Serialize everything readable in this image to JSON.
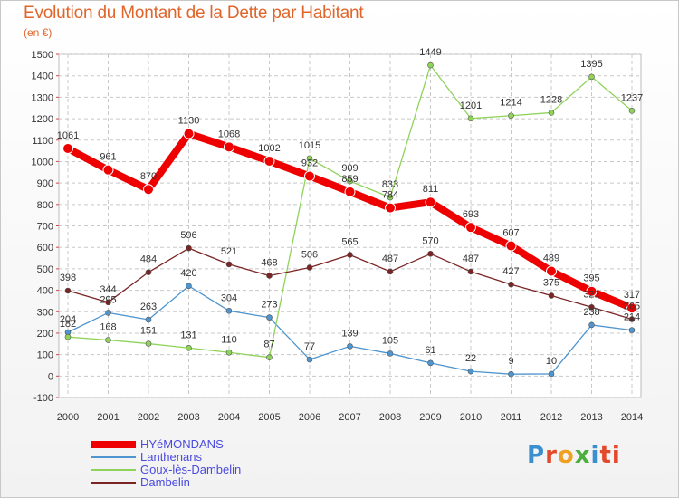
{
  "header": {
    "title": "Evolution du Montant de la Dette par Habitant",
    "unit": "(en €)"
  },
  "brand": {
    "letters": [
      "P",
      "r",
      "o",
      "x",
      "i",
      "ti"
    ]
  },
  "colors": {
    "title": "#e0652a",
    "label": "#333333",
    "grid": "#c8c8c8",
    "axis_ticks": "#d24a4a"
  },
  "chart_data": {
    "type": "line",
    "title": "Evolution du Montant de la Dette par Habitant",
    "ylabel": "(en €)",
    "xlabel": "",
    "x": [
      "2000",
      "2001",
      "2002",
      "2003",
      "2004",
      "2005",
      "2006",
      "2007",
      "2008",
      "2009",
      "2010",
      "2011",
      "2012",
      "2013",
      "2014"
    ],
    "ylim": [
      -100,
      1500
    ],
    "yticks": [
      -100,
      0,
      100,
      200,
      300,
      400,
      500,
      600,
      700,
      800,
      900,
      1000,
      1100,
      1200,
      1300,
      1400,
      1500
    ],
    "grid": true,
    "legend_position": "bottom-left",
    "series": [
      {
        "name": "HYéMONDANS",
        "color": "#ee0000",
        "emphasis": true,
        "values": [
          1061,
          961,
          870,
          1130,
          1068,
          1002,
          932,
          859,
          784,
          811,
          693,
          607,
          489,
          395,
          317
        ]
      },
      {
        "name": "Lanthenans",
        "color": "#4f95cf",
        "values": [
          204,
          295,
          263,
          420,
          304,
          273,
          77,
          139,
          105,
          61,
          22,
          9,
          10,
          238,
          214
        ]
      },
      {
        "name": "Goux-lès-Dambelin",
        "color": "#8fd35a",
        "values": [
          182,
          168,
          151,
          131,
          110,
          87,
          1015,
          909,
          833,
          1449,
          1201,
          1214,
          1228,
          1395,
          1237
        ]
      },
      {
        "name": "Dambelin",
        "color": "#7a2424",
        "values": [
          398,
          344,
          484,
          596,
          521,
          468,
          506,
          565,
          487,
          570,
          487,
          427,
          375,
          321,
          265
        ]
      }
    ]
  }
}
